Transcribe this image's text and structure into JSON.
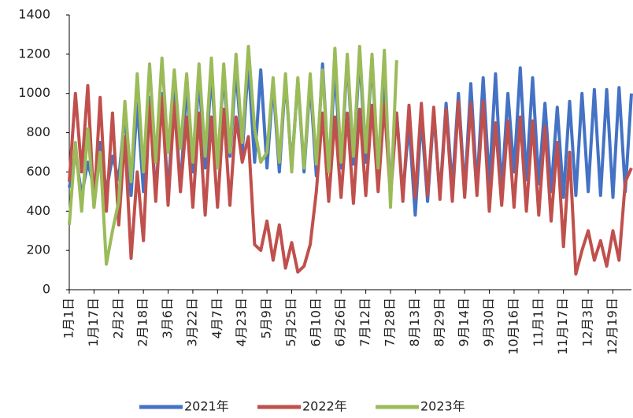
{
  "chart_data": {
    "type": "line",
    "categories": [
      "1月1日",
      null,
      null,
      null,
      "1月17日",
      null,
      null,
      null,
      "2月2日",
      null,
      null,
      null,
      "2月18日",
      null,
      null,
      null,
      "3月6日",
      null,
      null,
      null,
      "3月22日",
      null,
      null,
      null,
      "4月7日",
      null,
      null,
      null,
      "4月23日",
      null,
      null,
      null,
      "5月9日",
      null,
      null,
      null,
      "5月25日",
      null,
      null,
      null,
      "6月10日",
      null,
      null,
      null,
      "6月26日",
      null,
      null,
      null,
      "7月12日",
      null,
      null,
      null,
      "7月28日",
      null,
      null,
      null,
      "8月13日",
      null,
      null,
      null,
      "8月29日",
      null,
      null,
      null,
      "9月14日",
      null,
      null,
      null,
      "9月30日",
      null,
      null,
      null,
      "10月16日",
      null,
      null,
      null,
      "11月1日",
      null,
      null,
      null,
      "11月17日",
      null,
      null,
      null,
      "12月3日",
      null,
      null,
      null,
      "12月19日",
      null,
      null,
      null
    ],
    "series": [
      {
        "name": "2021年",
        "color": "#4472c4",
        "values": [
          520,
          700,
          480,
          650,
          520,
          750,
          500,
          680,
          560,
          900,
          480,
          950,
          500,
          980,
          470,
          1000,
          480,
          1020,
          500,
          1050,
          600,
          1080,
          620,
          1100,
          640,
          1100,
          680,
          1120,
          700,
          1150,
          650,
          1120,
          620,
          1050,
          600,
          1080,
          620,
          1070,
          600,
          1060,
          580,
          1150,
          600,
          1120,
          620,
          1180,
          640,
          1200,
          650,
          1180,
          600,
          1100,
          520,
          900,
          480,
          850,
          380,
          880,
          450,
          900,
          480,
          950,
          520,
          1000,
          500,
          1050,
          520,
          1080,
          540,
          1100,
          500,
          1000,
          600,
          1130,
          560,
          1080,
          540,
          950,
          500,
          930,
          470,
          960,
          480,
          1000,
          500,
          1020,
          480,
          1020,
          470,
          1030,
          500,
          1000
        ]
      },
      {
        "name": "2022年",
        "color": "#c0504d",
        "values": [
          550,
          1000,
          600,
          1040,
          420,
          980,
          400,
          900,
          330,
          780,
          160,
          600,
          250,
          950,
          450,
          980,
          430,
          950,
          500,
          880,
          420,
          900,
          380,
          880,
          420,
          920,
          430,
          880,
          650,
          780,
          230,
          200,
          350,
          150,
          330,
          110,
          240,
          90,
          120,
          230,
          500,
          900,
          450,
          880,
          470,
          900,
          440,
          920,
          480,
          940,
          500,
          950,
          470,
          900,
          450,
          940,
          470,
          950,
          480,
          930,
          460,
          920,
          450,
          960,
          470,
          950,
          480,
          960,
          400,
          850,
          430,
          860,
          420,
          880,
          400,
          860,
          380,
          830,
          350,
          750,
          220,
          700,
          80,
          200,
          300,
          150,
          250,
          120,
          300,
          150,
          550,
          620
        ]
      },
      {
        "name": "2023年",
        "color": "#9bbb59",
        "values": [
          330,
          750,
          400,
          820,
          420,
          700,
          130,
          300,
          450,
          960,
          550,
          1100,
          600,
          1150,
          650,
          1180,
          700,
          1120,
          720,
          1100,
          650,
          1150,
          680,
          1180,
          620,
          1150,
          700,
          1200,
          750,
          1240,
          820,
          650,
          700,
          1080,
          650,
          1100,
          600,
          1080,
          620,
          1100,
          640,
          1120,
          600,
          1230,
          650,
          1200,
          680,
          1240,
          700,
          1200,
          620,
          1220,
          420,
          1170,
          null,
          null,
          null,
          null,
          null,
          null,
          null,
          null,
          null,
          null,
          null,
          null,
          null,
          null,
          null,
          null,
          null,
          null,
          null,
          null,
          null,
          null,
          null,
          null,
          null,
          null,
          null,
          null,
          null,
          null,
          null,
          null,
          null,
          null,
          null,
          null,
          null,
          null
        ]
      }
    ],
    "ylim": [
      0,
      1400
    ],
    "yticks": [
      0,
      200,
      400,
      600,
      800,
      1000,
      1200,
      1400
    ],
    "legend": "bottom"
  }
}
